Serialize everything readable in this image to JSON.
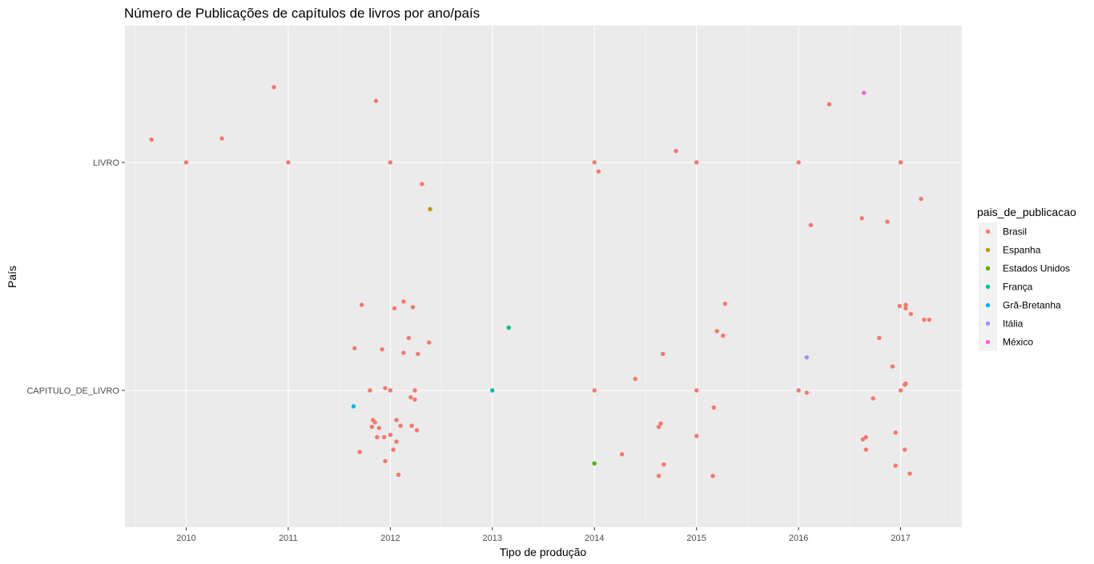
{
  "chart_data": {
    "type": "scatter",
    "title": "Número de Publicações de capítulos de livros por ano/país",
    "xlabel": "Tipo de produção",
    "ylabel": "País",
    "x_ticks": [
      "2010",
      "2011",
      "2012",
      "2013",
      "2014",
      "2015",
      "2016",
      "2017"
    ],
    "y_categories": [
      "CAPITULO_DE_LIVRO",
      "LIVRO"
    ],
    "xlim": [
      2009.4,
      2017.6
    ],
    "ylim": [
      0.4,
      2.6
    ],
    "grid": true,
    "legend_position": "right",
    "legend_title": "pais_de_publicacao",
    "series": [
      {
        "name": "Brasil",
        "color": "#F8766D",
        "points": [
          [
            2009.66,
            2.1
          ],
          [
            2010.0,
            2.0
          ],
          [
            2010.35,
            2.105
          ],
          [
            2010.86,
            2.33
          ],
          [
            2011.0,
            2.0
          ],
          [
            2011.86,
            2.27
          ],
          [
            2012.0,
            2.0
          ],
          [
            2012.31,
            1.905
          ],
          [
            2014.0,
            2.0
          ],
          [
            2014.04,
            1.96
          ],
          [
            2014.8,
            2.05
          ],
          [
            2015.0,
            2.0
          ],
          [
            2016.0,
            2.0
          ],
          [
            2016.3,
            2.255
          ],
          [
            2016.12,
            1.725
          ],
          [
            2016.62,
            1.755
          ],
          [
            2016.87,
            1.74
          ],
          [
            2017.0,
            2.0
          ],
          [
            2017.2,
            1.84
          ],
          [
            2011.72,
            1.375
          ],
          [
            2012.04,
            1.36
          ],
          [
            2012.13,
            1.39
          ],
          [
            2012.22,
            1.365
          ],
          [
            2011.65,
            1.185
          ],
          [
            2011.92,
            1.18
          ],
          [
            2012.18,
            1.23
          ],
          [
            2012.13,
            1.165
          ],
          [
            2012.27,
            1.16
          ],
          [
            2012.38,
            1.21
          ],
          [
            2011.8,
            1.0
          ],
          [
            2011.95,
            1.01
          ],
          [
            2012.0,
            1.0
          ],
          [
            2012.2,
            0.97
          ],
          [
            2012.24,
            1.0
          ],
          [
            2012.24,
            0.96
          ],
          [
            2011.83,
            0.87
          ],
          [
            2011.85,
            0.86
          ],
          [
            2012.06,
            0.87
          ],
          [
            2012.21,
            0.845
          ],
          [
            2011.82,
            0.84
          ],
          [
            2011.89,
            0.835
          ],
          [
            2012.1,
            0.845
          ],
          [
            2012.26,
            0.825
          ],
          [
            2011.87,
            0.795
          ],
          [
            2011.94,
            0.795
          ],
          [
            2012.0,
            0.805
          ],
          [
            2012.06,
            0.775
          ],
          [
            2012.03,
            0.74
          ],
          [
            2011.7,
            0.73
          ],
          [
            2011.95,
            0.69
          ],
          [
            2012.08,
            0.63
          ],
          [
            2014.0,
            1.0
          ],
          [
            2014.4,
            1.05
          ],
          [
            2014.67,
            1.16
          ],
          [
            2014.65,
            0.855
          ],
          [
            2014.63,
            0.84
          ],
          [
            2015.0,
            1.0
          ],
          [
            2015.2,
            1.26
          ],
          [
            2015.26,
            1.24
          ],
          [
            2015.28,
            1.38
          ],
          [
            2015.17,
            0.925
          ],
          [
            2015.0,
            0.8
          ],
          [
            2014.27,
            0.72
          ],
          [
            2014.68,
            0.675
          ],
          [
            2014.63,
            0.625
          ],
          [
            2015.16,
            0.625
          ],
          [
            2016.0,
            1.0
          ],
          [
            2016.08,
            0.99
          ],
          [
            2016.73,
            0.965
          ],
          [
            2016.79,
            1.23
          ],
          [
            2016.92,
            1.105
          ],
          [
            2017.05,
            1.03
          ],
          [
            2017.04,
            1.025
          ],
          [
            2017.0,
            1.0
          ],
          [
            2016.95,
            0.815
          ],
          [
            2016.66,
            0.795
          ],
          [
            2016.63,
            0.785
          ],
          [
            2016.66,
            0.74
          ],
          [
            2017.04,
            0.74
          ],
          [
            2016.95,
            0.67
          ],
          [
            2017.09,
            0.635
          ],
          [
            2016.99,
            1.37
          ],
          [
            2017.05,
            1.375
          ],
          [
            2017.05,
            1.36
          ],
          [
            2017.1,
            1.335
          ],
          [
            2017.23,
            1.31
          ],
          [
            2017.28,
            1.31
          ]
        ]
      },
      {
        "name": "Espanha",
        "color": "#C49A00",
        "points": [
          [
            2012.39,
            1.795
          ]
        ]
      },
      {
        "name": "Estados Unidos",
        "color": "#53B400",
        "points": [
          [
            2014.0,
            0.68
          ]
        ]
      },
      {
        "name": "França",
        "color": "#00C094",
        "points": [
          [
            2013.0,
            1.0
          ],
          [
            2013.16,
            1.275
          ]
        ]
      },
      {
        "name": "Grã-Bretanha",
        "color": "#00B6EB",
        "points": [
          [
            2011.64,
            0.93
          ]
        ]
      },
      {
        "name": "Itália",
        "color": "#A58AFF",
        "points": [
          [
            2016.08,
            1.145
          ]
        ]
      },
      {
        "name": "México",
        "color": "#FB61D7",
        "points": [
          [
            2016.64,
            2.305
          ]
        ]
      }
    ]
  }
}
